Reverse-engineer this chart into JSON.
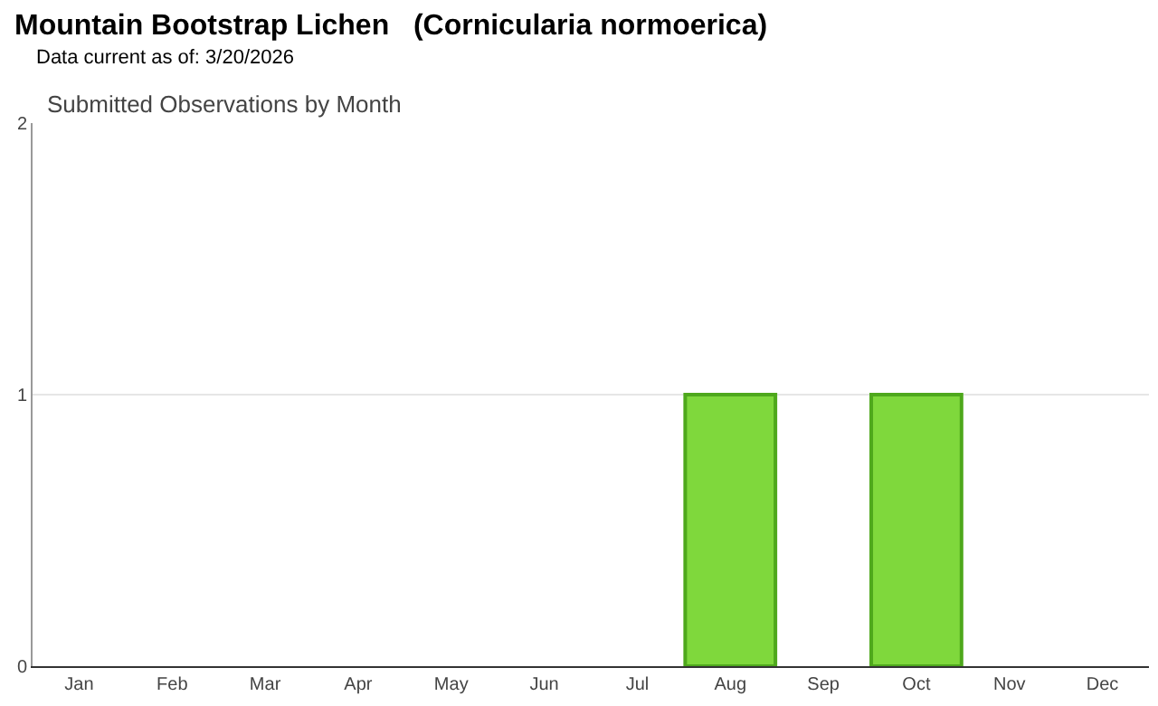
{
  "chart_data": {
    "type": "bar",
    "title": "Mountain Bootstrap Lichen   (Cornicularia normoerica)",
    "subtitle": "Data current as of: 3/20/2026",
    "annotations": [
      "Submitted Observations by Month"
    ],
    "categories": [
      "Jan",
      "Feb",
      "Mar",
      "Apr",
      "May",
      "Jun",
      "Jul",
      "Aug",
      "Sep",
      "Oct",
      "Nov",
      "Dec"
    ],
    "values": [
      0,
      0,
      0,
      0,
      0,
      0,
      0,
      1,
      0,
      1,
      0,
      0
    ],
    "color": "#7fd83c",
    "ylim": [
      0,
      2
    ],
    "yticks": [
      0,
      1,
      2
    ],
    "grid": "y"
  }
}
